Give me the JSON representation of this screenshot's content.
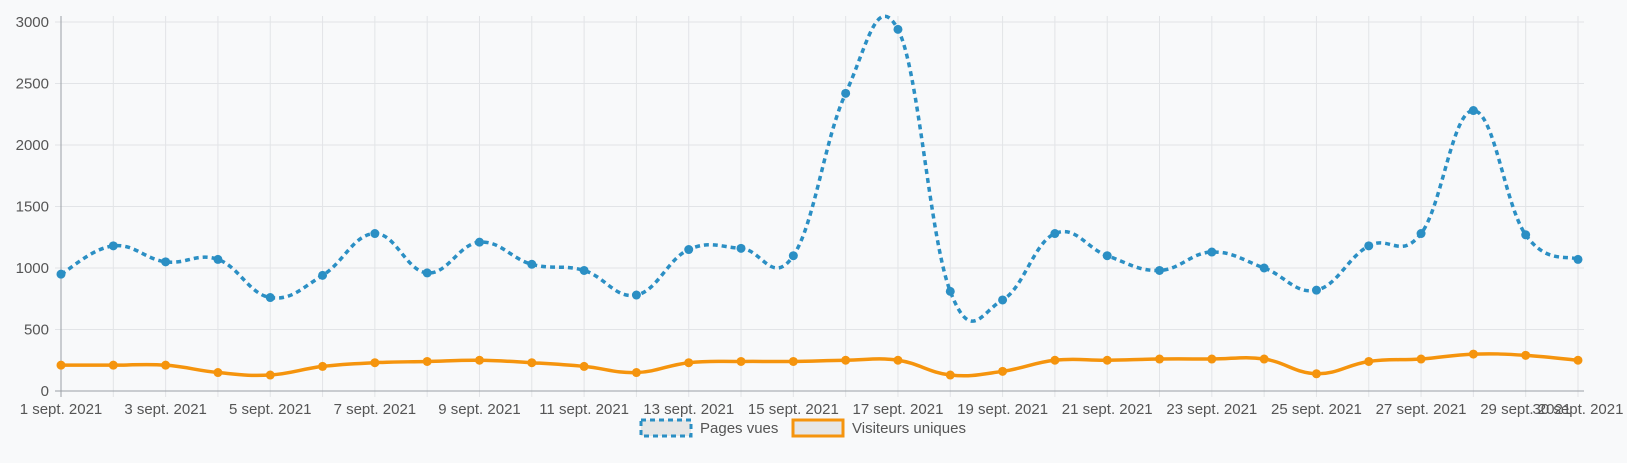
{
  "chart_data": {
    "type": "line",
    "title": "",
    "xlabel": "",
    "ylabel": "",
    "ylim": [
      0,
      3000
    ],
    "yticks": [
      0,
      500,
      1000,
      1500,
      2000,
      2500,
      3000
    ],
    "grid": true,
    "legend_position": "bottom",
    "x": [
      "1 sept. 2021",
      "2 sept. 2021",
      "3 sept. 2021",
      "4 sept. 2021",
      "5 sept. 2021",
      "6 sept. 2021",
      "7 sept. 2021",
      "8 sept. 2021",
      "9 sept. 2021",
      "10 sept. 2021",
      "11 sept. 2021",
      "12 sept. 2021",
      "13 sept. 2021",
      "14 sept. 2021",
      "15 sept. 2021",
      "16 sept. 2021",
      "17 sept. 2021",
      "18 sept. 2021",
      "19 sept. 2021",
      "20 sept. 2021",
      "21 sept. 2021",
      "22 sept. 2021",
      "23 sept. 2021",
      "24 sept. 2021",
      "25 sept. 2021",
      "26 sept. 2021",
      "27 sept. 2021",
      "28 sept. 2021",
      "29 sept. 2021",
      "30 sept. 2021"
    ],
    "x_tick_labels": [
      "1 sept. 2021",
      "3 sept. 2021",
      "5 sept. 2021",
      "7 sept. 2021",
      "9 sept. 2021",
      "11 sept. 2021",
      "13 sept. 2021",
      "15 sept. 2021",
      "17 sept. 2021",
      "19 sept. 2021",
      "21 sept. 2021",
      "23 sept. 2021",
      "25 sept. 2021",
      "27 sept. 2021",
      "29 sept. 2021",
      "30 sept. 2021"
    ],
    "series": [
      {
        "name": "Pages vues",
        "color": "#2b8fc4",
        "dashed": true,
        "values": [
          950,
          1180,
          1050,
          1070,
          760,
          940,
          1280,
          960,
          1210,
          1030,
          980,
          780,
          1150,
          1160,
          1100,
          2420,
          2940,
          810,
          740,
          1280,
          1100,
          980,
          1130,
          1000,
          820,
          1180,
          1280,
          2280,
          1270,
          1070
        ]
      },
      {
        "name": "Visiteurs uniques",
        "color": "#f5940d",
        "dashed": false,
        "values": [
          210,
          210,
          210,
          150,
          130,
          200,
          230,
          240,
          250,
          230,
          200,
          150,
          230,
          240,
          240,
          250,
          250,
          130,
          160,
          250,
          250,
          260,
          260,
          260,
          140,
          240,
          260,
          300,
          290,
          250
        ]
      }
    ]
  }
}
